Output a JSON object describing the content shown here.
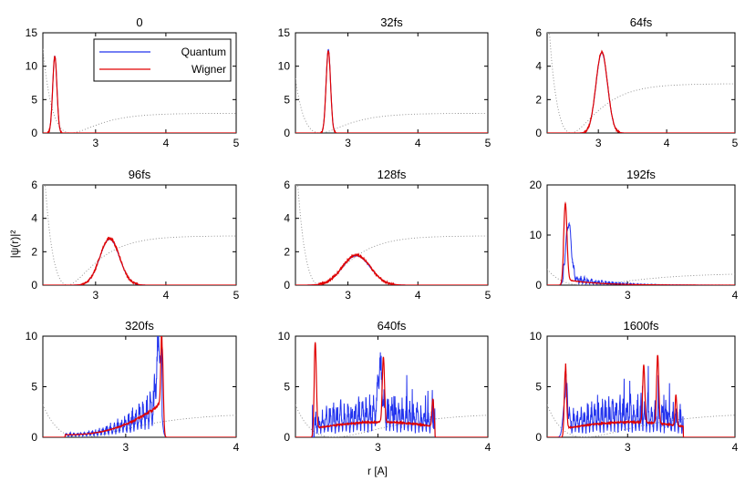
{
  "chart_data": {
    "type": "line",
    "xlabel": "r [A]",
    "ylabel": "|ψ(r)|²",
    "legend": {
      "placement": "top-right of first panel",
      "entries": [
        {
          "name": "Quantum",
          "color": "#2233ee"
        },
        {
          "name": "Wigner",
          "color": "#e00000"
        }
      ]
    },
    "colors": {
      "Quantum": "#2233ee",
      "Wigner": "#e00000",
      "potential": "#8a8a8a"
    },
    "panels": [
      {
        "title": "0",
        "xlim": [
          2.25,
          5
        ],
        "ylim": [
          0,
          15
        ],
        "xticks": [
          "3",
          "4",
          "5"
        ],
        "yticks": [
          "0",
          "5",
          "10",
          "15"
        ],
        "series": [
          {
            "name": "Quantum",
            "peaks": [
              {
                "center": 2.42,
                "width": 0.03,
                "height": 11.5
              }
            ]
          },
          {
            "name": "Wigner",
            "peaks": [
              {
                "center": 2.42,
                "width": 0.03,
                "height": 11.5
              }
            ]
          }
        ],
        "potential": {
          "r_min": 2.65,
          "v_inf": 2.95,
          "scale": 2.8
        }
      },
      {
        "title": "32fs",
        "xlim": [
          2.25,
          5
        ],
        "ylim": [
          0,
          15
        ],
        "xticks": [
          "3",
          "4",
          "5"
        ],
        "yticks": [
          "0",
          "5",
          "10",
          "15"
        ],
        "series": [
          {
            "name": "Quantum",
            "peaks": [
              {
                "center": 2.72,
                "width": 0.032,
                "height": 12.5
              }
            ]
          },
          {
            "name": "Wigner",
            "peaks": [
              {
                "center": 2.72,
                "width": 0.032,
                "height": 12.3
              }
            ]
          }
        ],
        "potential": {
          "r_min": 2.6,
          "v_inf": 2.95,
          "scale": 2.8
        }
      },
      {
        "title": "64fs",
        "xlim": [
          2.25,
          5
        ],
        "ylim": [
          0,
          6
        ],
        "xticks": [
          "3",
          "4",
          "5"
        ],
        "yticks": [
          "0",
          "2",
          "4",
          "6"
        ],
        "series": [
          {
            "name": "Quantum",
            "peaks": [
              {
                "center": 3.05,
                "width": 0.085,
                "height": 4.8
              }
            ]
          },
          {
            "name": "Wigner",
            "peaks": [
              {
                "center": 3.05,
                "width": 0.085,
                "height": 4.85
              }
            ]
          }
        ],
        "potential": {
          "r_min": 2.6,
          "v_inf": 2.95,
          "scale": 2.8
        }
      },
      {
        "title": "96fs",
        "xlim": [
          2.25,
          5
        ],
        "ylim": [
          0,
          6
        ],
        "xticks": [
          "3",
          "4",
          "5"
        ],
        "yticks": [
          "0",
          "2",
          "4",
          "6"
        ],
        "series": [
          {
            "name": "Quantum",
            "peaks": [
              {
                "center": 3.2,
                "width": 0.14,
                "height": 2.75
              }
            ]
          },
          {
            "name": "Wigner",
            "peaks": [
              {
                "center": 3.2,
                "width": 0.14,
                "height": 2.8
              }
            ]
          }
        ],
        "potential": {
          "r_min": 2.6,
          "v_inf": 2.95,
          "scale": 2.8
        }
      },
      {
        "title": "128fs",
        "xlim": [
          2.25,
          5
        ],
        "ylim": [
          0,
          6
        ],
        "xticks": [
          "3",
          "4",
          "5"
        ],
        "yticks": [
          "0",
          "2",
          "4",
          "6"
        ],
        "series": [
          {
            "name": "Quantum",
            "peaks": [
              {
                "center": 3.12,
                "width": 0.2,
                "height": 1.75
              }
            ]
          },
          {
            "name": "Wigner",
            "peaks": [
              {
                "center": 3.12,
                "width": 0.2,
                "height": 1.8
              }
            ]
          }
        ],
        "potential": {
          "r_min": 2.6,
          "v_inf": 2.95,
          "scale": 2.8
        }
      },
      {
        "title": "192fs",
        "xlim": [
          2.25,
          4
        ],
        "ylim": [
          0,
          20
        ],
        "xticks": [
          "3",
          "4"
        ],
        "yticks": [
          "0",
          "10",
          "20"
        ],
        "series": [
          {
            "name": "Quantum",
            "peaks": [
              {
                "center": 2.45,
                "width": 0.025,
                "height": 11
              }
            ]
          },
          {
            "name": "Wigner",
            "peaks": [
              {
                "center": 2.42,
                "width": 0.015,
                "height": 15.2
              }
            ]
          }
        ],
        "potential": {
          "r_min": 2.6,
          "v_inf": 2.4,
          "scale": 2.2
        }
      },
      {
        "title": "320fs",
        "xlim": [
          2.25,
          4
        ],
        "ylim": [
          0,
          10
        ],
        "xticks": [
          "3",
          "4"
        ],
        "yticks": [
          "0",
          "5",
          "10"
        ],
        "series": [
          {
            "name": "Quantum",
            "peaks": [
              {
                "center": 3.3,
                "width": 0.02,
                "height": 6.5
              }
            ]
          },
          {
            "name": "Wigner",
            "peaks": [
              {
                "center": 3.33,
                "width": 0.01,
                "height": 8.9
              }
            ]
          }
        ],
        "potential": {
          "r_min": 2.6,
          "v_inf": 2.4,
          "scale": 2.2
        }
      },
      {
        "title": "640fs",
        "xlim": [
          2.25,
          4
        ],
        "ylim": [
          0,
          10
        ],
        "xticks": [
          "3",
          "4"
        ],
        "yticks": [
          "0",
          "5",
          "10"
        ],
        "series": [
          {
            "name": "Quantum",
            "peaks": [
              {
                "center": 3.02,
                "width": 0.02,
                "height": 4.8
              }
            ]
          },
          {
            "name": "Wigner",
            "peaks": [
              {
                "center": 2.43,
                "width": 0.01,
                "height": 8.5
              },
              {
                "center": 3.05,
                "width": 0.01,
                "height": 6.5
              },
              {
                "center": 3.5,
                "width": 0.008,
                "height": 2.7
              }
            ]
          }
        ],
        "potential": {
          "r_min": 2.6,
          "v_inf": 2.4,
          "scale": 2.2
        }
      },
      {
        "title": "1600fs",
        "xlim": [
          2.25,
          4
        ],
        "ylim": [
          0,
          10
        ],
        "xticks": [
          "3",
          "4"
        ],
        "yticks": [
          "0",
          "5",
          "10"
        ],
        "series": [
          {
            "name": "Quantum",
            "peaks": [
              {
                "center": 2.42,
                "width": 0.02,
                "height": 4.0
              }
            ]
          },
          {
            "name": "Wigner",
            "peaks": [
              {
                "center": 2.42,
                "width": 0.01,
                "height": 6.6
              },
              {
                "center": 3.15,
                "width": 0.01,
                "height": 5.7
              },
              {
                "center": 3.28,
                "width": 0.01,
                "height": 6.8
              },
              {
                "center": 3.45,
                "width": 0.008,
                "height": 3.0
              }
            ]
          }
        ],
        "potential": {
          "r_min": 2.6,
          "v_inf": 2.4,
          "scale": 2.2
        }
      }
    ]
  }
}
